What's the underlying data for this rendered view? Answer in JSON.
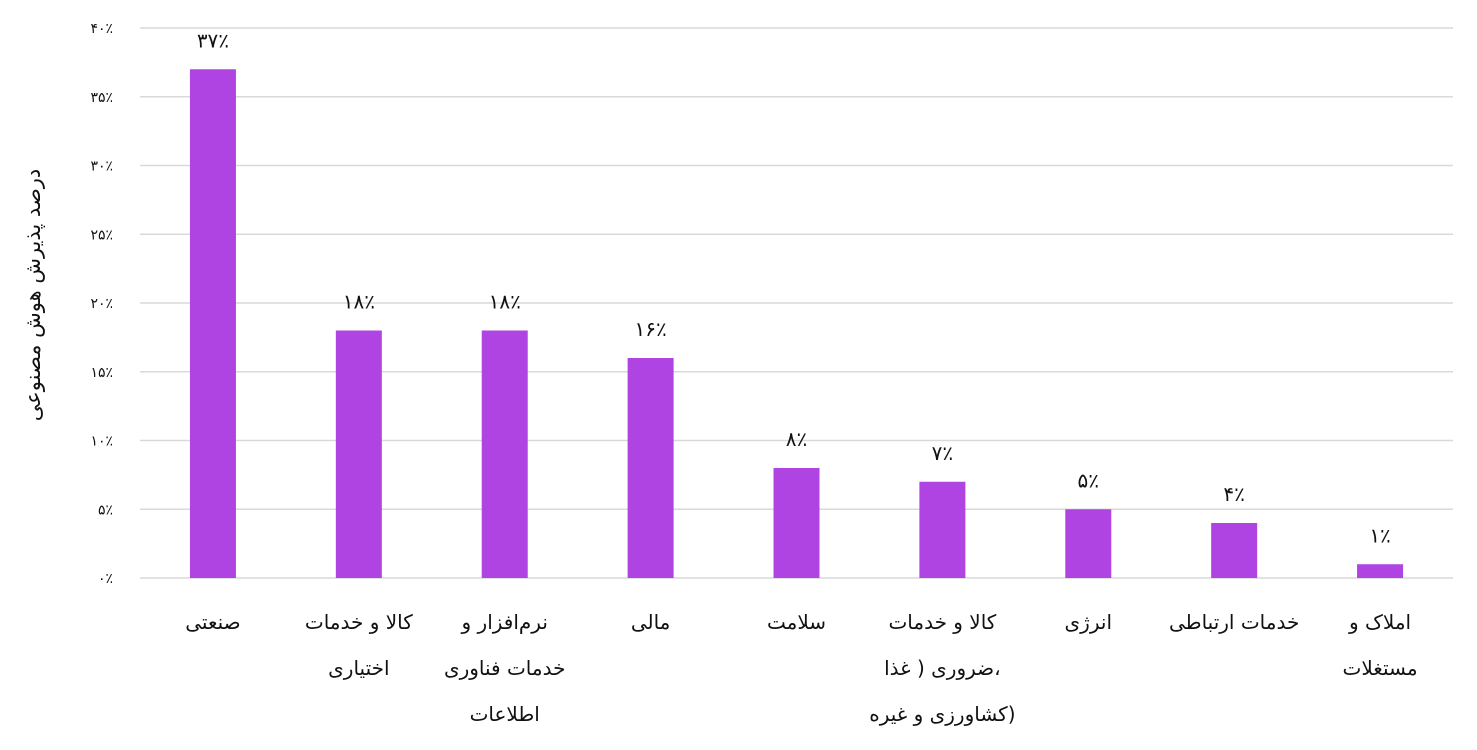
{
  "chart_data": {
    "type": "bar",
    "ylabel": "درصد پذیرش هوش مصنوعی",
    "ylim": [
      0,
      40
    ],
    "grid": true,
    "yticks": [
      {
        "value": 0,
        "label": "۰٪"
      },
      {
        "value": 5,
        "label": "۵٪"
      },
      {
        "value": 10,
        "label": "۱۰٪"
      },
      {
        "value": 15,
        "label": "۱۵٪"
      },
      {
        "value": 20,
        "label": "۲۰٪"
      },
      {
        "value": 25,
        "label": "۲۵٪"
      },
      {
        "value": 30,
        "label": "۳۰٪"
      },
      {
        "value": 35,
        "label": "۳۵٪"
      },
      {
        "value": 40,
        "label": "۴۰٪"
      }
    ],
    "categories": [
      [
        "صنعتی"
      ],
      [
        "کالا و خدمات",
        "اختیاری"
      ],
      [
        "نرم‌افزار و",
        "خدمات فناوری",
        "اطلاعات"
      ],
      [
        "مالی"
      ],
      [
        "سلامت"
      ],
      [
        "کالا و خدمات",
        "ضروری ( غذا،",
        "کشاورزی و غیره)"
      ],
      [
        "انرژی"
      ],
      [
        "خدمات ارتباطی"
      ],
      [
        "املاک و",
        "مستغلات"
      ]
    ],
    "values": [
      37,
      18,
      18,
      16,
      8,
      7,
      5,
      4,
      1
    ],
    "data_labels": [
      "۳۷٪",
      "۱۸٪",
      "۱۸٪",
      "۱۶٪",
      "۸٪",
      "۷٪",
      "۵٪",
      "۴٪",
      "۱٪"
    ],
    "bar_color": "#b044e2",
    "grid_color": "#d9d9d9"
  }
}
